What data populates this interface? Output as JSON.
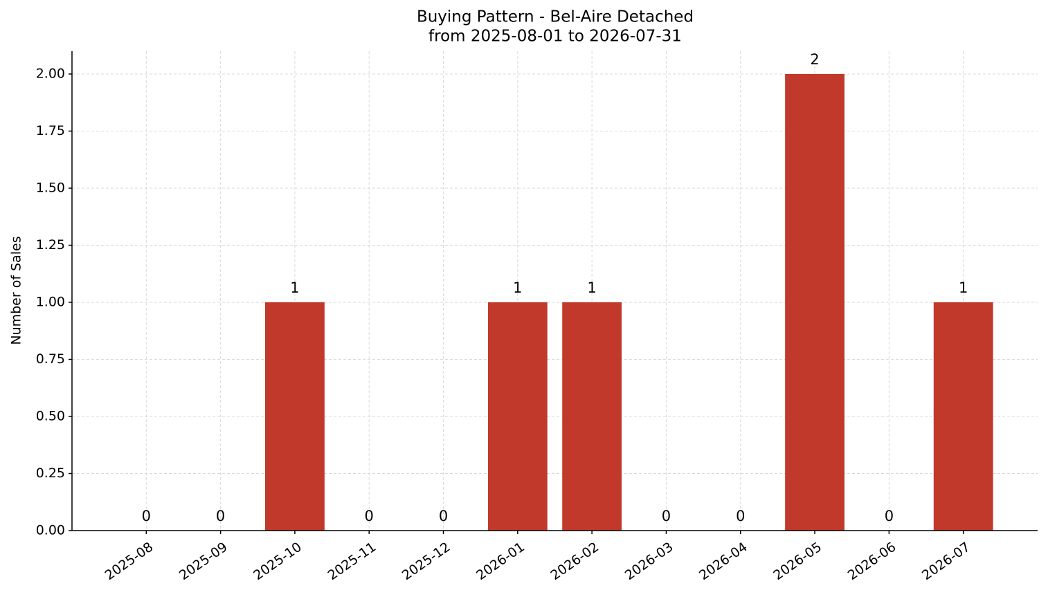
{
  "chart_data": {
    "type": "bar",
    "title": "Buying Pattern - Bel-Aire Detached",
    "subtitle": "from 2025-08-01 to 2026-07-31",
    "y_label": "Number of Sales",
    "categories": [
      "2025-08",
      "2025-09",
      "2025-10",
      "2025-11",
      "2025-12",
      "2026-01",
      "2026-02",
      "2026-03",
      "2026-04",
      "2026-05",
      "2026-06",
      "2026-07"
    ],
    "values": [
      0,
      0,
      1,
      0,
      0,
      1,
      1,
      0,
      0,
      2,
      0,
      1
    ],
    "color": "#c0392b",
    "ylim": [
      0,
      2.1
    ],
    "yticks": [
      {
        "value": 0,
        "label": "0.00"
      },
      {
        "value": 0.25,
        "label": "0.25"
      },
      {
        "value": 0.5,
        "label": "0.50"
      },
      {
        "value": 0.75,
        "label": "0.75"
      },
      {
        "value": 1,
        "label": "1.00"
      },
      {
        "value": 1.25,
        "label": "1.25"
      },
      {
        "value": 1.5,
        "label": "1.50"
      },
      {
        "value": 1.75,
        "label": "1.75"
      },
      {
        "value": 2,
        "label": "2.00"
      }
    ],
    "grid": true
  }
}
